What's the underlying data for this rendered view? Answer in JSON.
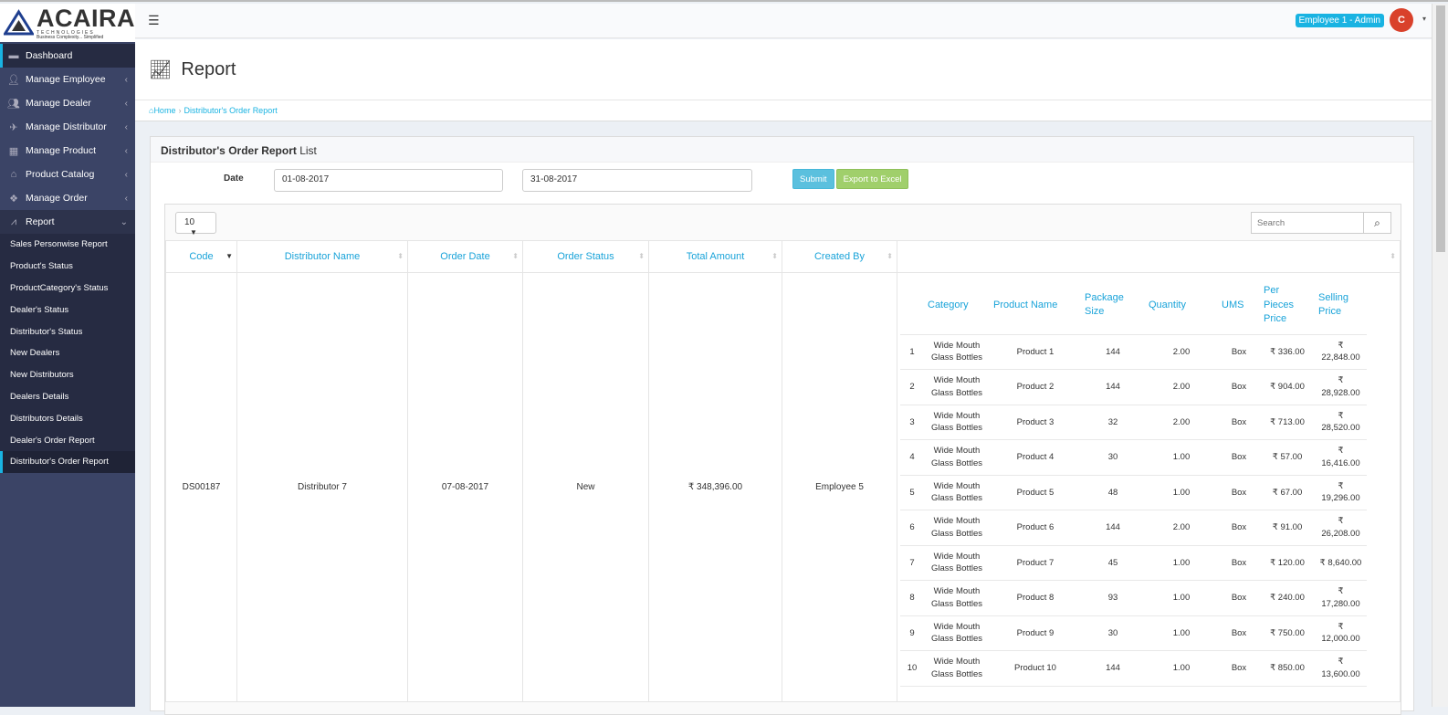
{
  "brand": {
    "name": "ACAIRA",
    "sub": "TECHNOLOGIES",
    "tagline": "Business Complexity... Simplified"
  },
  "header": {
    "user": "Employee 1 - Admin"
  },
  "sidebar": {
    "items": [
      {
        "label": "Dashboard",
        "icon": "briefcase-icon"
      },
      {
        "label": "Manage Employee",
        "icon": "user-icon"
      },
      {
        "label": "Manage Dealer",
        "icon": "users-icon"
      },
      {
        "label": "Manage Distributor",
        "icon": "plane-icon"
      },
      {
        "label": "Manage Product",
        "icon": "grid-icon"
      },
      {
        "label": "Product Catalog",
        "icon": "home-icon"
      },
      {
        "label": "Manage Order",
        "icon": "cubes-icon"
      },
      {
        "label": "Report",
        "icon": "line-chart-icon"
      }
    ],
    "report_sub": [
      "Sales Personwise Report",
      "Product's Status",
      "ProductCategory's Status",
      "Dealer's Status",
      "Distributor's Status",
      "New Dealers",
      "New Distributors",
      "Dealers Details",
      "Distributors Details",
      "Dealer's Order Report",
      "Distributor's Order Report"
    ]
  },
  "page": {
    "title": "Report",
    "breadcrumb": [
      "Home",
      "Distributor's Order Report"
    ]
  },
  "box": {
    "title": "Distributor's Order Report",
    "title_suffix": "List",
    "date_label": "Date",
    "from": "01-08-2017",
    "to": "31-08-2017",
    "submit": "Submit",
    "export": "Export to Excel",
    "page_length": "10",
    "search_placeholder": "Search"
  },
  "table": {
    "columns": [
      "Code",
      "Distributor Name",
      "Order Date",
      "Order Status",
      "Total Amount",
      "Created By",
      ""
    ],
    "row": {
      "code": "DS00187",
      "distributor": "Distributor 7",
      "date": "07-08-2017",
      "status": "New",
      "total": "₹ 348,396.00",
      "created_by": "Employee 5"
    },
    "detail_columns": [
      "",
      "Category",
      "Product Name",
      "Package Size",
      "Quantity",
      "UMS",
      "Per Pieces Price",
      "Selling Price"
    ],
    "details": [
      [
        "1",
        "Wide Mouth Glass Bottles",
        "Product 1",
        "144",
        "2.00",
        "Box",
        "₹ 336.00",
        "₹ 22,848.00"
      ],
      [
        "2",
        "Wide Mouth Glass Bottles",
        "Product 2",
        "144",
        "2.00",
        "Box",
        "₹ 904.00",
        "₹ 28,928.00"
      ],
      [
        "3",
        "Wide Mouth Glass Bottles",
        "Product 3",
        "32",
        "2.00",
        "Box",
        "₹ 713.00",
        "₹ 28,520.00"
      ],
      [
        "4",
        "Wide Mouth Glass Bottles",
        "Product 4",
        "30",
        "1.00",
        "Box",
        "₹ 57.00",
        "₹ 16,416.00"
      ],
      [
        "5",
        "Wide Mouth Glass Bottles",
        "Product 5",
        "48",
        "1.00",
        "Box",
        "₹ 67.00",
        "₹ 19,296.00"
      ],
      [
        "6",
        "Wide Mouth Glass Bottles",
        "Product 6",
        "144",
        "2.00",
        "Box",
        "₹ 91.00",
        "₹ 26,208.00"
      ],
      [
        "7",
        "Wide Mouth Glass Bottles",
        "Product 7",
        "45",
        "1.00",
        "Box",
        "₹ 120.00",
        "₹ 8,640.00"
      ],
      [
        "8",
        "Wide Mouth Glass Bottles",
        "Product 8",
        "93",
        "1.00",
        "Box",
        "₹ 240.00",
        "₹ 17,280.00"
      ],
      [
        "9",
        "Wide Mouth Glass Bottles",
        "Product 9",
        "30",
        "1.00",
        "Box",
        "₹ 750.00",
        "₹ 12,000.00"
      ],
      [
        "10",
        "Wide Mouth Glass Bottles",
        "Product 10",
        "144",
        "1.00",
        "Box",
        "₹ 850.00",
        "₹ 13,600.00"
      ]
    ]
  },
  "colors": {
    "accent": "#19b3e2",
    "sidebar": "#3b4466",
    "submit": "#5bc0de",
    "export": "#a0cf6b"
  }
}
